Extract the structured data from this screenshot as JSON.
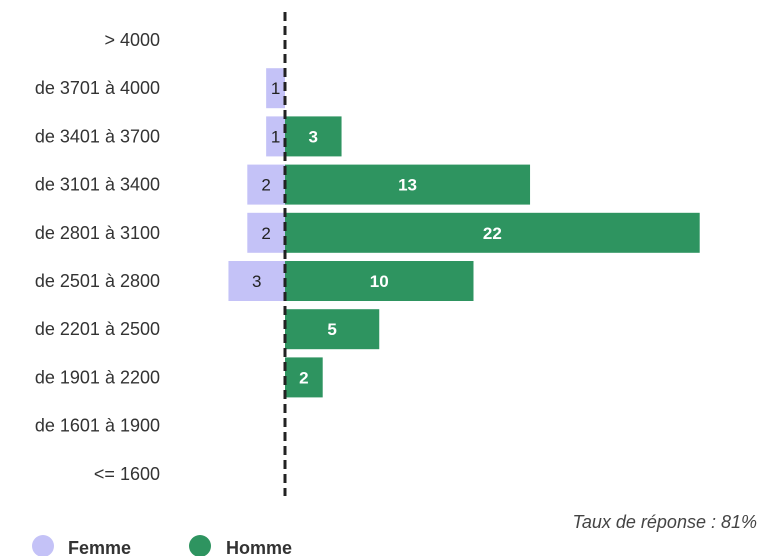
{
  "chart_data": {
    "type": "bar",
    "orientation": "horizontal-diverging",
    "categories": [
      "> 4000",
      "de 3701 à 4000",
      "de 3401 à 3700",
      "de 3101 à 3400",
      "de 2801 à 3100",
      "de 2501 à 2800",
      "de 2201 à 2500",
      "de 1901 à 2200",
      "de 1601 à 1900",
      "<= 1600"
    ],
    "series": [
      {
        "name": "Femme",
        "color": "#c4c2f7",
        "values": [
          0,
          1,
          1,
          2,
          2,
          3,
          0,
          0,
          0,
          0
        ]
      },
      {
        "name": "Homme",
        "color": "#2e9460",
        "values": [
          0,
          0,
          3,
          13,
          22,
          10,
          5,
          2,
          0,
          0
        ]
      }
    ],
    "legend_position": "bottom-left",
    "grid": false
  },
  "note": "Taux de réponse : 81%"
}
